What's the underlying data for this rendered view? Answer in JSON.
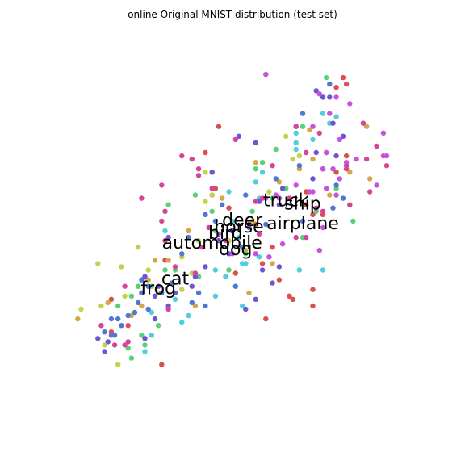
{
  "chart_data": {
    "type": "scatter",
    "title": "online Original MNIST distribution (test set)",
    "axes_visible": false,
    "grid": false,
    "xlim": [
      0,
      100
    ],
    "ylim": [
      0,
      100
    ],
    "series": [
      {
        "color": "#d95050",
        "points": [
          [
            81,
            97
          ],
          [
            82,
            95
          ],
          [
            79,
            94
          ],
          [
            44,
            82
          ],
          [
            82,
            73
          ],
          [
            79,
            68
          ],
          [
            70,
            62
          ],
          [
            70,
            58
          ],
          [
            72,
            55
          ],
          [
            75,
            55
          ],
          [
            55,
            52
          ],
          [
            60,
            45
          ],
          [
            62,
            35
          ],
          [
            72,
            32
          ],
          [
            65,
            30
          ],
          [
            66,
            29
          ],
          [
            58,
            23
          ],
          [
            42,
            61
          ],
          [
            12,
            29
          ],
          [
            12,
            19
          ],
          [
            28,
            41
          ],
          [
            17,
            21
          ],
          [
            27,
            9
          ],
          [
            47,
            57
          ],
          [
            57,
            40
          ],
          [
            49,
            37
          ],
          [
            72,
            27
          ],
          [
            40,
            74
          ],
          [
            43,
            63
          ]
        ]
      },
      {
        "color": "#d8a64a",
        "points": [
          [
            71,
            81
          ],
          [
            72,
            72
          ],
          [
            68,
            69
          ],
          [
            83,
            68
          ],
          [
            89,
            66
          ],
          [
            88,
            82
          ],
          [
            55,
            71
          ],
          [
            45,
            60
          ],
          [
            35,
            50
          ],
          [
            29,
            41
          ],
          [
            18,
            24
          ],
          [
            9,
            21
          ],
          [
            2,
            23
          ],
          [
            25,
            41
          ],
          [
            23,
            35
          ],
          [
            21,
            27
          ],
          [
            37,
            27
          ],
          [
            53,
            31
          ],
          [
            62,
            65
          ],
          [
            77,
            61
          ],
          [
            60,
            40
          ],
          [
            52,
            44
          ],
          [
            11,
            28
          ],
          [
            48,
            50
          ]
        ]
      },
      {
        "color": "#c3d24b",
        "points": [
          [
            64,
            79
          ],
          [
            66,
            72
          ],
          [
            40,
            68
          ],
          [
            40,
            59
          ],
          [
            38,
            47
          ],
          [
            33,
            42
          ],
          [
            23,
            38
          ],
          [
            20,
            33
          ],
          [
            15,
            39
          ],
          [
            8,
            40
          ],
          [
            3,
            26
          ],
          [
            9,
            27
          ],
          [
            10,
            15
          ],
          [
            16,
            30
          ],
          [
            20,
            45
          ],
          [
            33,
            32
          ],
          [
            36,
            37
          ],
          [
            47,
            47
          ],
          [
            54,
            53
          ],
          [
            59,
            62
          ],
          [
            68,
            73
          ],
          [
            14,
            9
          ],
          [
            26,
            31
          ],
          [
            42,
            61
          ]
        ]
      },
      {
        "color": "#5bd175",
        "points": [
          [
            76,
            97
          ],
          [
            69,
            82
          ],
          [
            61,
            75
          ],
          [
            57,
            71
          ],
          [
            55,
            69
          ],
          [
            42,
            68
          ],
          [
            37,
            61
          ],
          [
            42,
            56
          ],
          [
            54,
            56
          ],
          [
            29,
            58
          ],
          [
            18,
            30
          ],
          [
            14,
            27
          ],
          [
            20,
            33
          ],
          [
            24,
            33
          ],
          [
            31,
            38
          ],
          [
            38,
            36
          ],
          [
            47,
            38
          ],
          [
            52,
            43
          ],
          [
            43,
            50
          ],
          [
            28,
            38
          ],
          [
            26,
            21
          ],
          [
            21,
            18
          ],
          [
            18,
            11
          ],
          [
            17,
            14
          ],
          [
            22,
            15
          ],
          [
            79,
            63
          ],
          [
            73,
            56
          ],
          [
            69,
            48
          ],
          [
            60,
            60
          ],
          [
            64,
            63
          ],
          [
            84,
            53
          ]
        ]
      },
      {
        "color": "#4fcfde",
        "points": [
          [
            75,
            86
          ],
          [
            77,
            83
          ],
          [
            67,
            80
          ],
          [
            67,
            77
          ],
          [
            57,
            68
          ],
          [
            55,
            65
          ],
          [
            56,
            60
          ],
          [
            47,
            62
          ],
          [
            48,
            53
          ],
          [
            50,
            48
          ],
          [
            52,
            40
          ],
          [
            56,
            42
          ],
          [
            68,
            38
          ],
          [
            75,
            38
          ],
          [
            43,
            38
          ],
          [
            51,
            27
          ],
          [
            43,
            30
          ],
          [
            46,
            36
          ],
          [
            28,
            50
          ],
          [
            24,
            18
          ],
          [
            35,
            24
          ],
          [
            31,
            29
          ],
          [
            33,
            22
          ],
          [
            22,
            13
          ],
          [
            24,
            25
          ],
          [
            51,
            40
          ],
          [
            67,
            75
          ],
          [
            72,
            78
          ],
          [
            79,
            85
          ]
        ]
      },
      {
        "color": "#4d78d4",
        "points": [
          [
            77,
            95
          ],
          [
            67,
            82
          ],
          [
            69,
            86
          ],
          [
            76,
            74
          ],
          [
            68,
            70
          ],
          [
            61,
            66
          ],
          [
            52,
            61
          ],
          [
            45,
            58
          ],
          [
            40,
            55
          ],
          [
            43,
            53
          ],
          [
            35,
            48
          ],
          [
            33,
            43
          ],
          [
            30,
            34
          ],
          [
            27,
            31
          ],
          [
            21,
            35
          ],
          [
            23,
            33
          ],
          [
            21,
            31
          ],
          [
            20,
            28
          ],
          [
            19,
            25
          ],
          [
            17,
            24
          ],
          [
            15,
            21
          ],
          [
            14,
            23
          ],
          [
            12,
            18
          ],
          [
            13,
            18
          ],
          [
            10,
            19
          ],
          [
            12,
            23
          ],
          [
            23,
            26
          ],
          [
            36,
            28
          ],
          [
            38,
            31
          ],
          [
            40,
            27
          ],
          [
            49,
            33
          ],
          [
            51,
            45
          ],
          [
            53,
            51
          ],
          [
            58,
            52
          ],
          [
            69,
            53
          ],
          [
            78,
            57
          ],
          [
            81,
            60
          ],
          [
            79,
            64
          ]
        ]
      },
      {
        "color": "#7055d3",
        "points": [
          [
            77,
            91
          ],
          [
            78,
            83
          ],
          [
            81,
            79
          ],
          [
            79,
            73
          ],
          [
            75,
            69
          ],
          [
            72,
            66
          ],
          [
            63,
            63
          ],
          [
            56,
            59
          ],
          [
            48,
            50
          ],
          [
            44,
            47
          ],
          [
            47,
            43
          ],
          [
            40,
            39
          ],
          [
            37,
            36
          ],
          [
            36,
            33
          ],
          [
            31,
            31
          ],
          [
            26,
            33
          ],
          [
            25,
            30
          ],
          [
            29,
            27
          ],
          [
            25,
            23
          ],
          [
            22,
            17
          ],
          [
            11,
            16
          ],
          [
            8,
            17
          ],
          [
            10,
            13
          ],
          [
            22,
            36
          ],
          [
            29,
            48
          ],
          [
            55,
            29
          ],
          [
            52,
            26
          ],
          [
            60,
            34
          ],
          [
            57,
            38
          ],
          [
            62,
            58
          ],
          [
            55,
            77
          ],
          [
            50,
            79
          ],
          [
            73,
            93
          ],
          [
            75,
            91
          ],
          [
            62,
            39
          ],
          [
            73,
            74
          ],
          [
            42,
            68
          ]
        ]
      },
      {
        "color": "#c553de",
        "points": [
          [
            58,
            98
          ],
          [
            79,
            91
          ],
          [
            83,
            89
          ],
          [
            80,
            78
          ],
          [
            76,
            74
          ],
          [
            75,
            69
          ],
          [
            80,
            66
          ],
          [
            79,
            61
          ],
          [
            76,
            63
          ],
          [
            72,
            62
          ],
          [
            75,
            51
          ],
          [
            74,
            44
          ],
          [
            59,
            42
          ],
          [
            55,
            43
          ],
          [
            48,
            43
          ],
          [
            44,
            49
          ],
          [
            63,
            46
          ],
          [
            62,
            60
          ],
          [
            61,
            61
          ],
          [
            72,
            82
          ],
          [
            78,
            69
          ],
          [
            82,
            71
          ],
          [
            85,
            72
          ],
          [
            93,
            73
          ],
          [
            94,
            73
          ],
          [
            93,
            80
          ],
          [
            91,
            64
          ],
          [
            71,
            62
          ],
          [
            67,
            64
          ],
          [
            58,
            60
          ],
          [
            77,
            86
          ],
          [
            74,
            92
          ]
        ]
      },
      {
        "color": "#d6449a",
        "points": [
          [
            49,
            78
          ],
          [
            67,
            82
          ],
          [
            74,
            80
          ],
          [
            82,
            70
          ],
          [
            88,
            72
          ],
          [
            91,
            76
          ],
          [
            87,
            83
          ],
          [
            94,
            70
          ],
          [
            89,
            62
          ],
          [
            83,
            58
          ],
          [
            73,
            57
          ],
          [
            65,
            60
          ],
          [
            57,
            60
          ],
          [
            55,
            59
          ],
          [
            42,
            63
          ],
          [
            38,
            67
          ],
          [
            38,
            69
          ],
          [
            36,
            72
          ],
          [
            33,
            73
          ],
          [
            27,
            64
          ],
          [
            28,
            56
          ],
          [
            21,
            60
          ],
          [
            28,
            47
          ],
          [
            31,
            39
          ],
          [
            37,
            37
          ],
          [
            29,
            26
          ],
          [
            16,
            33
          ],
          [
            16,
            15
          ],
          [
            17,
            16
          ],
          [
            13,
            15
          ],
          [
            9,
            21
          ],
          [
            27,
            53
          ],
          [
            39,
            45
          ],
          [
            41,
            51
          ],
          [
            53,
            52
          ],
          [
            46,
            47
          ],
          [
            56,
            49
          ],
          [
            67,
            48
          ],
          [
            70,
            48
          ],
          [
            75,
            56
          ],
          [
            82,
            69
          ],
          [
            70,
            74
          ],
          [
            60,
            70
          ]
        ]
      }
    ],
    "class_labels": [
      {
        "text": "truck",
        "x": 64,
        "y": 59
      },
      {
        "text": "ship",
        "x": 69,
        "y": 58
      },
      {
        "text": "airplane",
        "x": 69,
        "y": 52
      },
      {
        "text": "deer",
        "x": 51,
        "y": 53
      },
      {
        "text": "horse",
        "x": 50,
        "y": 51
      },
      {
        "text": "bird",
        "x": 46,
        "y": 49
      },
      {
        "text": "automobile",
        "x": 42,
        "y": 46
      },
      {
        "text": "dog",
        "x": 49,
        "y": 44
      },
      {
        "text": "cat",
        "x": 31,
        "y": 35
      },
      {
        "text": "frog",
        "x": 26,
        "y": 32
      }
    ]
  }
}
